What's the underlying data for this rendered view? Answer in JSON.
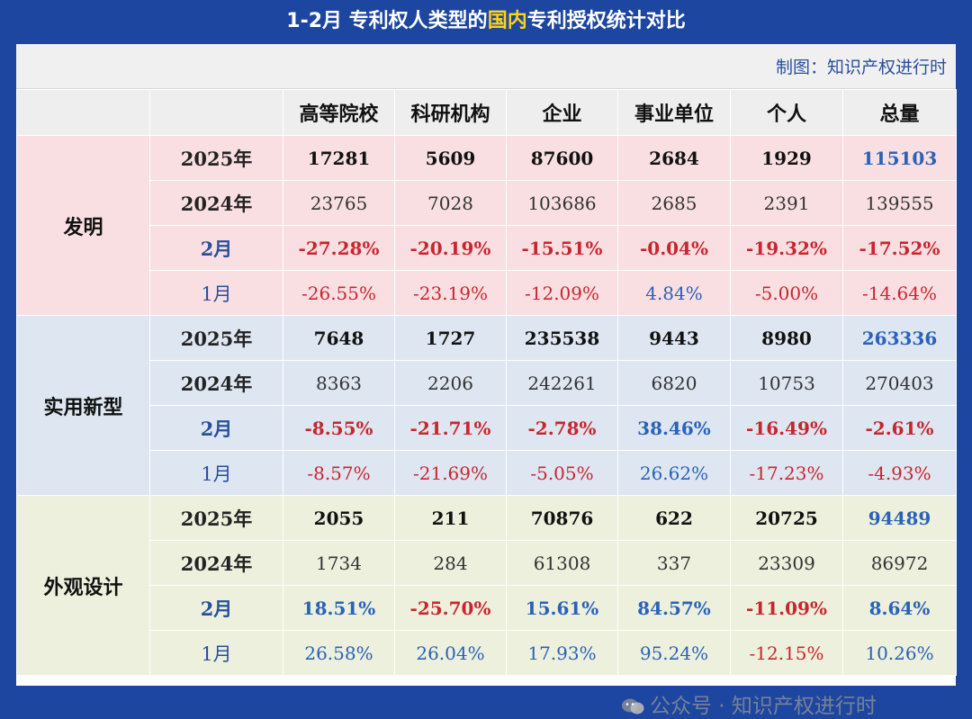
{
  "title": {
    "prefix": "1-2月  专利权人类型的",
    "highlight": "国内",
    "suffix": "专利授权统计对比"
  },
  "credit": "制图：知识产权进行时",
  "columns": [
    "高等院校",
    "科研机构",
    "企业",
    "事业单位",
    "个人",
    "总量"
  ],
  "categories": [
    {
      "name": "发明",
      "rows": [
        {
          "label": "2025年",
          "values": [
            "17281",
            "5609",
            "87600",
            "2684",
            "1929",
            "115103"
          ]
        },
        {
          "label": "2024年",
          "values": [
            "23765",
            "7028",
            "103686",
            "2685",
            "2391",
            "139555"
          ]
        },
        {
          "label": "2月",
          "values": [
            "-27.28%",
            "-20.19%",
            "-15.51%",
            "-0.04%",
            "-19.32%",
            "-17.52%"
          ]
        },
        {
          "label": "1月",
          "values": [
            "-26.55%",
            "-23.19%",
            "-12.09%",
            "4.84%",
            "-5.00%",
            "-14.64%"
          ]
        }
      ]
    },
    {
      "name": "实用新型",
      "rows": [
        {
          "label": "2025年",
          "values": [
            "7648",
            "1727",
            "235538",
            "9443",
            "8980",
            "263336"
          ]
        },
        {
          "label": "2024年",
          "values": [
            "8363",
            "2206",
            "242261",
            "6820",
            "10753",
            "270403"
          ]
        },
        {
          "label": "2月",
          "values": [
            "-8.55%",
            "-21.71%",
            "-2.78%",
            "38.46%",
            "-16.49%",
            "-2.61%"
          ]
        },
        {
          "label": "1月",
          "values": [
            "-8.57%",
            "-21.69%",
            "-5.05%",
            "26.62%",
            "-17.23%",
            "-4.93%"
          ]
        }
      ]
    },
    {
      "name": "外观设计",
      "rows": [
        {
          "label": "2025年",
          "values": [
            "2055",
            "211",
            "70876",
            "622",
            "20725",
            "94489"
          ]
        },
        {
          "label": "2024年",
          "values": [
            "1734",
            "284",
            "61308",
            "337",
            "23309",
            "86972"
          ]
        },
        {
          "label": "2月",
          "values": [
            "18.51%",
            "-25.70%",
            "15.61%",
            "84.57%",
            "-11.09%",
            "8.64%"
          ]
        },
        {
          "label": "1月",
          "values": [
            "26.58%",
            "26.04%",
            "17.93%",
            "95.24%",
            "-12.15%",
            "10.26%"
          ]
        }
      ]
    }
  ],
  "watermark": "公众号 · 知识产权进行时",
  "colors": {
    "header_bar": "#1d46a0",
    "title_highlight": "#ffd21e",
    "negative": "#c8262e",
    "positive": "#2a62b8",
    "invention_bg": "#f9dfe2",
    "utility_bg": "#dde6f1",
    "design_bg": "#ecf0dc"
  }
}
